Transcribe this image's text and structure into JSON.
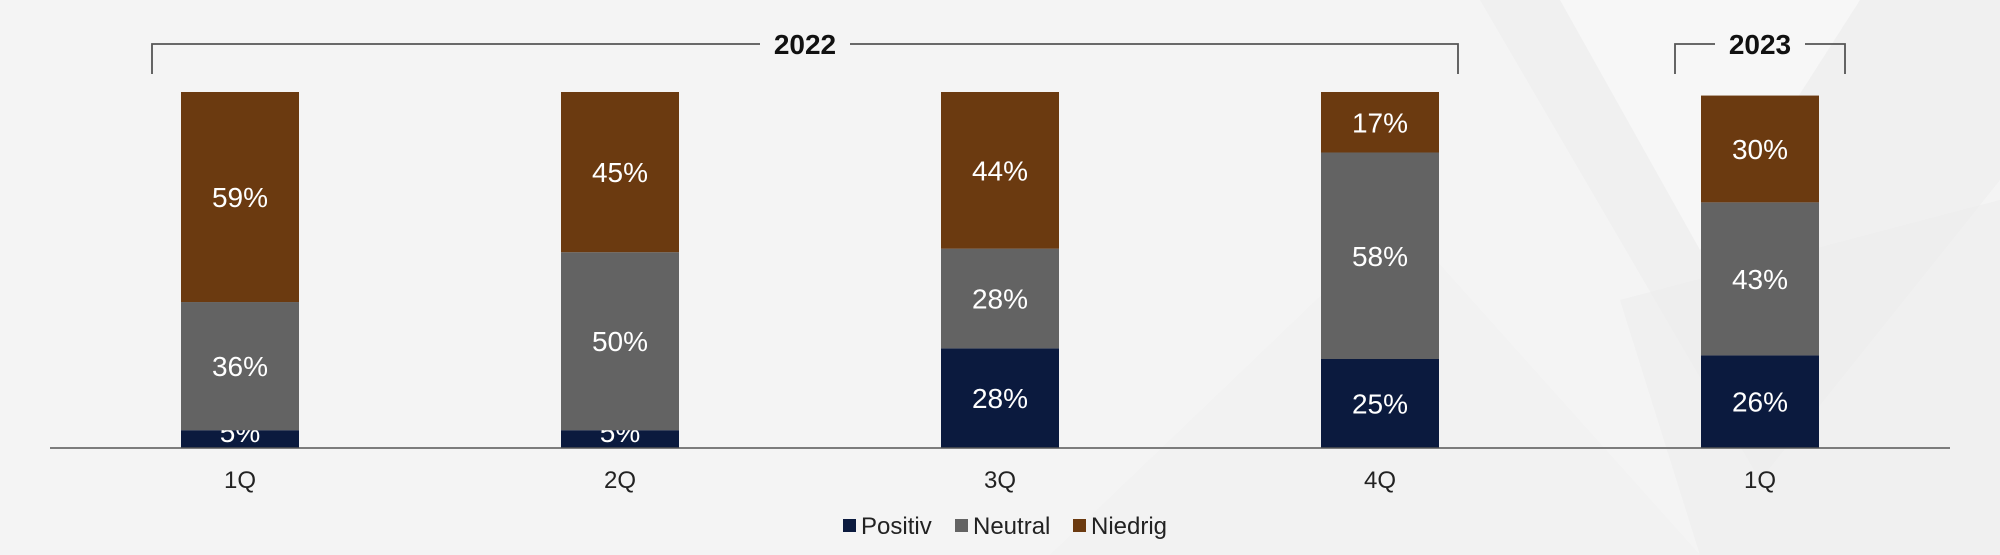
{
  "chart_data": {
    "type": "bar",
    "stacked": true,
    "categories": [
      "1Q",
      "2Q",
      "3Q",
      "4Q",
      "1Q"
    ],
    "year_groups": [
      {
        "label": "2022",
        "categories": [
          0,
          1,
          2,
          3
        ]
      },
      {
        "label": "2023",
        "categories": [
          4
        ]
      }
    ],
    "series": [
      {
        "name": "Positiv",
        "color": "#0b1a3e",
        "values": [
          5,
          5,
          28,
          25,
          26
        ]
      },
      {
        "name": "Neutral",
        "color": "#636363",
        "values": [
          36,
          50,
          28,
          58,
          43
        ]
      },
      {
        "name": "Niedrig",
        "color": "#6b3a10",
        "values": [
          59,
          45,
          44,
          17,
          30
        ]
      }
    ],
    "data_labels": [
      [
        "5%",
        "5%",
        "28%",
        "25%",
        "26%"
      ],
      [
        "36%",
        "50%",
        "28%",
        "58%",
        "43%"
      ],
      [
        "59%",
        "45%",
        "44%",
        "17%",
        "30%"
      ]
    ],
    "ylim": [
      0,
      100
    ],
    "legend_position": "bottom-center",
    "grid": false,
    "title": "",
    "xlabel": "",
    "ylabel": ""
  }
}
